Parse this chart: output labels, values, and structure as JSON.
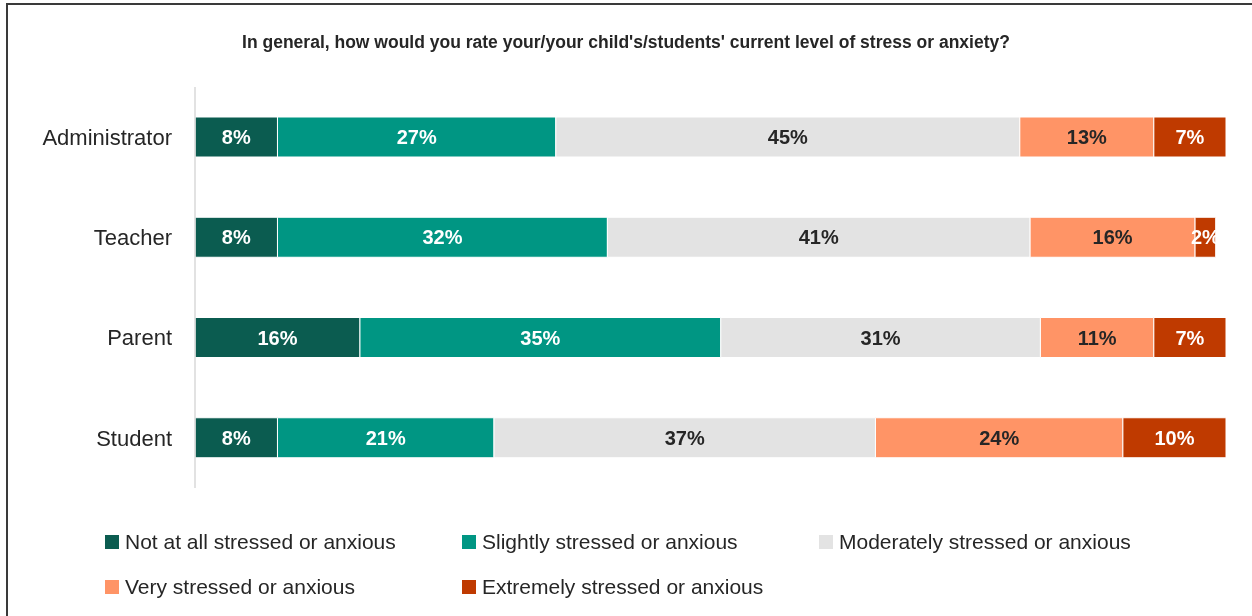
{
  "chart_data": {
    "type": "bar",
    "orientation": "horizontal",
    "stacked": true,
    "title": "In general, how would you rate your/your child's/students' current level of stress or anxiety?",
    "categories": [
      "Administrator",
      "Teacher",
      "Parent",
      "Student"
    ],
    "series": [
      {
        "name": "Not at all stressed or anxious",
        "color": "#0b5c50",
        "values": [
          8,
          8,
          16,
          8
        ],
        "value_labels": [
          "8%",
          "8%",
          "16%",
          "8%"
        ]
      },
      {
        "name": "Slightly stressed or anxious",
        "color": "#009683",
        "values": [
          27,
          32,
          35,
          21
        ],
        "value_labels": [
          "27%",
          "32%",
          "35%",
          "21%"
        ]
      },
      {
        "name": "Moderately stressed or anxious",
        "color": "#e3e3e3",
        "values": [
          45,
          41,
          31,
          37
        ],
        "value_labels": [
          "45%",
          "41%",
          "31%",
          "37%"
        ]
      },
      {
        "name": "Very stressed or anxious",
        "color": "#ff9466",
        "values": [
          13,
          16,
          11,
          24
        ],
        "value_labels": [
          "13%",
          "16%",
          "11%",
          "24%"
        ]
      },
      {
        "name": "Extremely stressed or anxious",
        "color": "#bf3a00",
        "values": [
          7,
          2,
          7,
          10
        ],
        "value_labels": [
          "7%",
          "2%",
          "7%",
          "10%"
        ]
      }
    ],
    "legend": "bottom"
  }
}
